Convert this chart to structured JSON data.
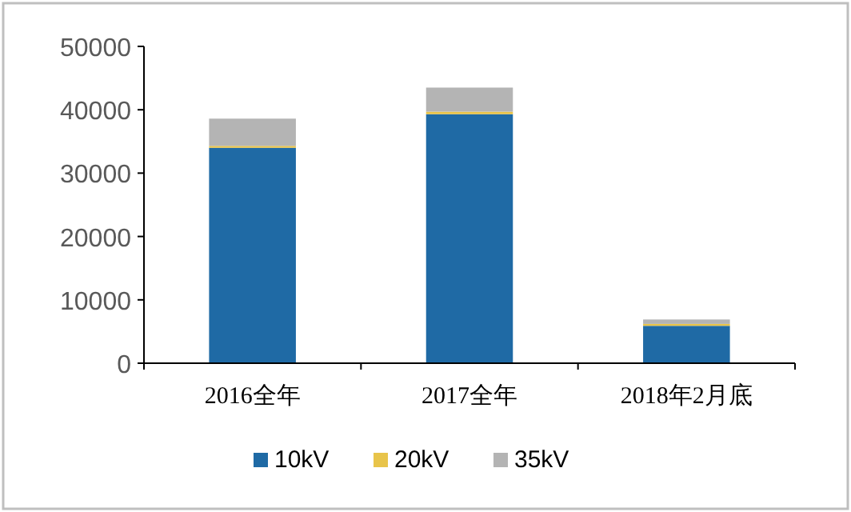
{
  "chart_data": {
    "type": "bar",
    "stacked": true,
    "categories": [
      "2016全年",
      "2017全年",
      "2018年2月底"
    ],
    "series": [
      {
        "name": "10kV",
        "color": "#1f6aa5",
        "values": [
          34000,
          39300,
          5900
        ]
      },
      {
        "name": "20kV",
        "color": "#e8c44a",
        "values": [
          300,
          400,
          300
        ]
      },
      {
        "name": "35kV",
        "color": "#b4b4b4",
        "values": [
          4300,
          3800,
          700
        ]
      }
    ],
    "ylim": [
      0,
      50000
    ],
    "yticks": [
      0,
      10000,
      20000,
      30000,
      40000,
      50000
    ],
    "grid": false,
    "legend": "bottom"
  }
}
